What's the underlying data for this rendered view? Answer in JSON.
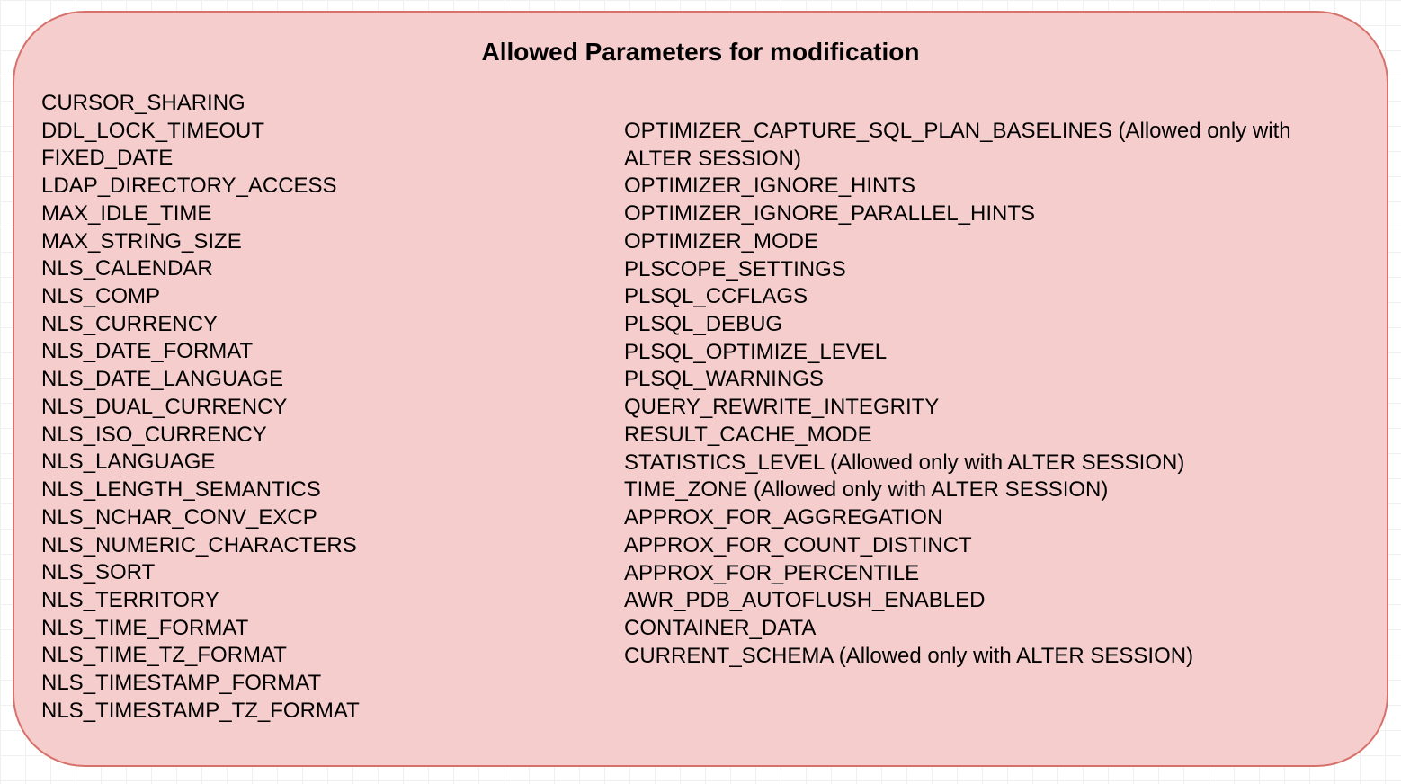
{
  "panel": {
    "title": "Allowed Parameters for modification",
    "title_fontsize": 28,
    "title_fontweight": "bold",
    "title_color": "#000000",
    "background_color": "#f6cdcd",
    "border_color": "#d6716b",
    "border_radius": 80,
    "body_fontsize": 24,
    "body_color": "#000000",
    "left_column": [
      "CURSOR_SHARING",
      "DDL_LOCK_TIMEOUT",
      "FIXED_DATE",
      "LDAP_DIRECTORY_ACCESS",
      "MAX_IDLE_TIME",
      "MAX_STRING_SIZE",
      "NLS_CALENDAR",
      "NLS_COMP",
      "NLS_CURRENCY",
      "NLS_DATE_FORMAT",
      "NLS_DATE_LANGUAGE",
      "NLS_DUAL_CURRENCY",
      "NLS_ISO_CURRENCY",
      "NLS_LANGUAGE",
      "NLS_LENGTH_SEMANTICS",
      "NLS_NCHAR_CONV_EXCP",
      "NLS_NUMERIC_CHARACTERS",
      "NLS_SORT",
      "NLS_TERRITORY",
      "NLS_TIME_FORMAT",
      "NLS_TIME_TZ_FORMAT",
      "NLS_TIMESTAMP_FORMAT",
      "NLS_TIMESTAMP_TZ_FORMAT"
    ],
    "right_column": [
      "OPTIMIZER_CAPTURE_SQL_PLAN_BASELINES  (Allowed only with ALTER SESSION)",
      "OPTIMIZER_IGNORE_HINTS",
      "OPTIMIZER_IGNORE_PARALLEL_HINTS",
      "OPTIMIZER_MODE",
      "PLSCOPE_SETTINGS",
      "PLSQL_CCFLAGS",
      "PLSQL_DEBUG",
      "PLSQL_OPTIMIZE_LEVEL",
      "PLSQL_WARNINGS",
      "QUERY_REWRITE_INTEGRITY",
      "RESULT_CACHE_MODE",
      "STATISTICS_LEVEL (Allowed only with ALTER SESSION)",
      "TIME_ZONE (Allowed only with ALTER SESSION)",
      "APPROX_FOR_AGGREGATION",
      "APPROX_FOR_COUNT_DISTINCT",
      "APPROX_FOR_PERCENTILE",
      "AWR_PDB_AUTOFLUSH_ENABLED",
      "CONTAINER_DATA",
      "CURRENT_SCHEMA (Allowed only with ALTER SESSION)"
    ]
  },
  "page": {
    "background_color": "#ffffff",
    "grid_color": "#f0f0f0",
    "grid_size": 28
  }
}
